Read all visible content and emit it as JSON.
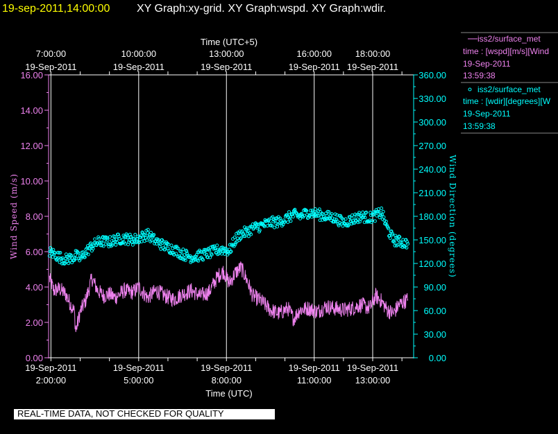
{
  "header": {
    "date": "19-sep-2011,14:00:00",
    "title": "XY Graph:xy-grid.  XY Graph:wspd.  XY Graph:wdir."
  },
  "colors": {
    "background": "#000000",
    "wind_speed": "#ee82ee",
    "wind_direction": "#00ffff",
    "grid": "#ffffff",
    "header_date": "#ffff00"
  },
  "legend": {
    "wspd": {
      "name": "iss2/surface_met",
      "desc": "time : [wspd][m/s][Wind",
      "date": "19-Sep-2011",
      "time": "13:59:38"
    },
    "wdir": {
      "name": "iss2/surface_met",
      "desc": "time : [wdir][degrees][W",
      "date": "19-Sep-2011",
      "time": "13:59:38"
    }
  },
  "footer": {
    "quality_notice": "REAL-TIME DATA, NOT CHECKED FOR QUALITY"
  },
  "chart_data": {
    "type": "line",
    "x_top_label": "Time (UTC+5)",
    "x_bottom_label": "Time (UTC)",
    "x_range_hours_utc": [
      1.92,
      14.4
    ],
    "top_ticks": [
      {
        "time": "7:00:00",
        "date": "19-Sep-2011",
        "hour_utc": 2.0
      },
      {
        "time": "10:00:00",
        "date": "19-Sep-2011",
        "hour_utc": 5.0
      },
      {
        "time": "13:00:00",
        "date": "19-Sep-2011",
        "hour_utc": 8.0
      },
      {
        "time": "16:00:00",
        "date": "19-Sep-2011",
        "hour_utc": 11.0
      },
      {
        "time": "18:00:00",
        "date": "19-Sep-2011",
        "hour_utc": 13.0
      }
    ],
    "bottom_ticks": [
      {
        "date": "19-Sep-2011",
        "time": "2:00:00",
        "hour_utc": 2.0
      },
      {
        "date": "19-Sep-2011",
        "time": "5:00:00",
        "hour_utc": 5.0
      },
      {
        "date": "19-Sep-2011",
        "time": "8:00:00",
        "hour_utc": 8.0
      },
      {
        "date": "19-Sep-2011",
        "time": "11:00:00",
        "hour_utc": 11.0
      },
      {
        "date": "19-Sep-2011",
        "time": "13:00:00",
        "hour_utc": 13.0
      }
    ],
    "y_left": {
      "label": "Wind Speed (m/s)",
      "range": [
        0,
        16
      ],
      "ticks": [
        "0.00",
        "2.00",
        "4.00",
        "6.00",
        "8.00",
        "10.00",
        "12.00",
        "14.00",
        "16.00"
      ]
    },
    "y_right": {
      "label": "Wind Direction (degrees)",
      "range": [
        0,
        360
      ],
      "ticks": [
        "0.00",
        "30.00",
        "60.00",
        "90.00",
        "120.00",
        "150.00",
        "180.00",
        "210.00",
        "240.00",
        "270.00",
        "300.00",
        "330.00",
        "360.00"
      ]
    },
    "series": [
      {
        "name": "iss2/surface_met",
        "variable": "wspd",
        "axis": "left",
        "style": "line",
        "x_hours_utc": [
          1.95,
          2.1,
          2.3,
          2.5,
          2.8,
          2.85,
          3.0,
          3.2,
          3.4,
          3.6,
          3.8,
          4.0,
          4.2,
          4.5,
          4.8,
          5.0,
          5.3,
          5.6,
          5.9,
          6.2,
          6.5,
          6.8,
          7.1,
          7.4,
          7.7,
          7.9,
          8.1,
          8.3,
          8.5,
          8.7,
          8.9,
          9.2,
          9.5,
          9.8,
          10.1,
          10.3,
          10.5,
          10.8,
          11.1,
          11.4,
          11.7,
          12.0,
          12.3,
          12.6,
          12.9,
          13.1,
          13.3,
          13.5,
          13.7,
          13.9,
          14.2
        ],
        "values": [
          4.5,
          3.8,
          3.9,
          3.6,
          2.6,
          1.5,
          2.6,
          3.3,
          4.5,
          3.8,
          3.5,
          3.6,
          3.4,
          3.8,
          3.7,
          4.0,
          3.4,
          3.8,
          3.5,
          3.3,
          3.6,
          3.8,
          3.5,
          3.7,
          4.6,
          4.9,
          4.2,
          4.8,
          5.1,
          4.4,
          3.5,
          3.2,
          2.7,
          2.5,
          2.8,
          2.2,
          2.7,
          2.8,
          2.6,
          2.9,
          2.8,
          2.7,
          2.8,
          3.0,
          2.8,
          3.5,
          3.2,
          2.7,
          2.5,
          3.0,
          3.3
        ]
      },
      {
        "name": "iss2/surface_met",
        "variable": "wdir",
        "axis": "right",
        "style": "markers",
        "x_hours_utc": [
          1.95,
          2.1,
          2.3,
          2.5,
          2.8,
          2.85,
          3.0,
          3.2,
          3.4,
          3.6,
          3.8,
          4.0,
          4.2,
          4.5,
          4.8,
          5.0,
          5.3,
          5.6,
          5.9,
          6.2,
          6.5,
          6.8,
          7.1,
          7.4,
          7.7,
          7.9,
          8.1,
          8.3,
          8.5,
          8.7,
          8.9,
          9.2,
          9.5,
          9.8,
          10.1,
          10.3,
          10.5,
          10.8,
          11.1,
          11.4,
          11.7,
          12.0,
          12.3,
          12.6,
          12.9,
          13.1,
          13.3,
          13.5,
          13.7,
          13.9,
          14.2
        ],
        "values": [
          135,
          132,
          128,
          125,
          128,
          130,
          126,
          135,
          142,
          147,
          148,
          147,
          150,
          152,
          150,
          152,
          157,
          148,
          142,
          138,
          132,
          128,
          130,
          133,
          137,
          138,
          136,
          150,
          158,
          160,
          165,
          168,
          172,
          173,
          178,
          182,
          180,
          185,
          183,
          180,
          178,
          172,
          176,
          180,
          178,
          181,
          185,
          165,
          150,
          148,
          145
        ]
      }
    ]
  }
}
